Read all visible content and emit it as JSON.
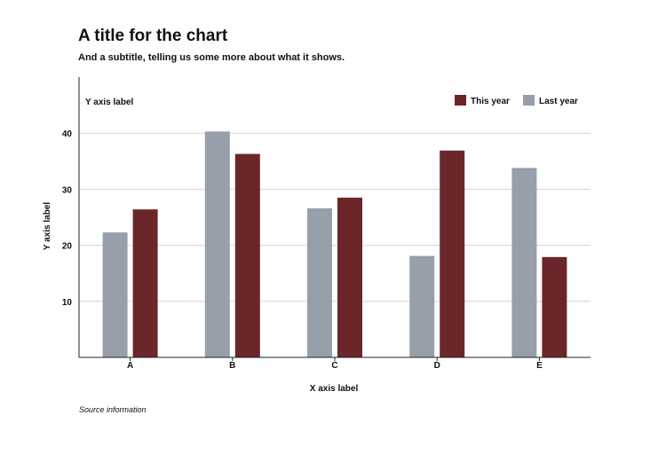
{
  "chart_data": {
    "type": "bar",
    "title": "A title for the chart",
    "subtitle": "And a subtitle, telling us some more about what it shows.",
    "xlabel": "X axis label",
    "ylabel": "Y axis label",
    "ylabel_top": "Y axis label",
    "categories": [
      "A",
      "B",
      "C",
      "D",
      "E"
    ],
    "series": [
      {
        "name": "Last year",
        "color": "#979faa",
        "values": [
          22.3,
          40.3,
          26.6,
          18.1,
          33.8
        ]
      },
      {
        "name": "This year",
        "color": "#6b2629",
        "values": [
          26.4,
          36.3,
          28.5,
          36.9,
          17.9
        ]
      }
    ],
    "legend_order": [
      "This year",
      "Last year"
    ],
    "legend_position": "top-right",
    "ylim": [
      0,
      45
    ],
    "yticks": [
      10,
      20,
      30,
      40
    ],
    "grid": true,
    "source": "Source information"
  }
}
